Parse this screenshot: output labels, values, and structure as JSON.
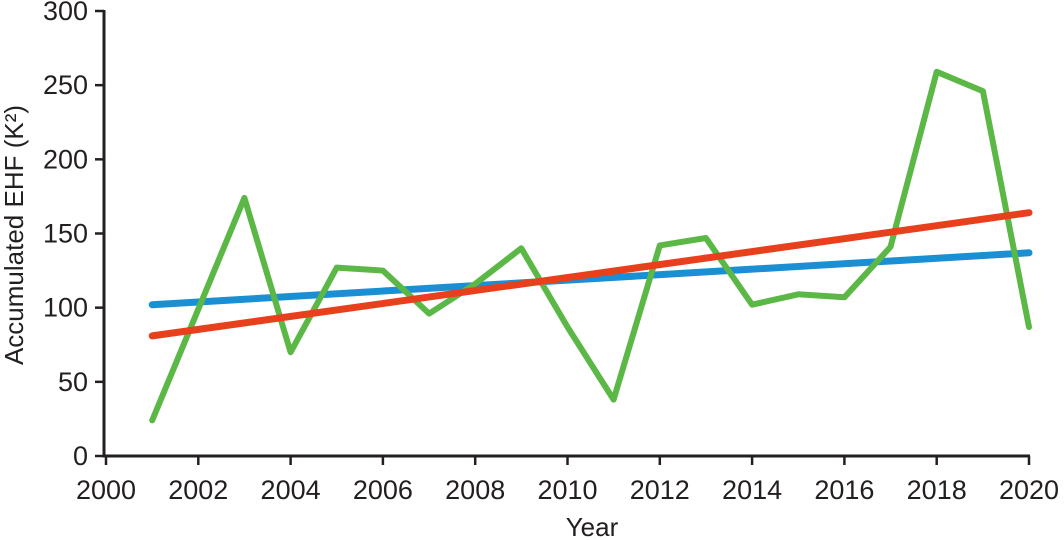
{
  "page": {
    "background_color": "#ffffff"
  },
  "chart_data": {
    "type": "line",
    "xlabel": "Year",
    "ylabel": "Accumulated EHF (K²)",
    "xlim": [
      2000,
      2020
    ],
    "ylim": [
      0,
      300
    ],
    "x_ticks": [
      2000,
      2002,
      2004,
      2006,
      2008,
      2010,
      2012,
      2014,
      2016,
      2018,
      2020
    ],
    "y_ticks": [
      0,
      50,
      100,
      150,
      200,
      250,
      300
    ],
    "grid": false,
    "legend_position": "none",
    "axis_color": "#231f20",
    "series": [
      {
        "name": "linear-trend-blue",
        "type": "trend-line",
        "color": "#1b8fd4",
        "stroke_width": 7,
        "x": [
          2001,
          2020
        ],
        "values": [
          102,
          137
        ]
      },
      {
        "name": "annual-accumulated-ehf",
        "type": "data-line",
        "color": "#5cb846",
        "stroke_width": 6,
        "x": [
          2001,
          2002,
          2003,
          2004,
          2005,
          2006,
          2007,
          2008,
          2009,
          2010,
          2011,
          2012,
          2013,
          2014,
          2015,
          2016,
          2017,
          2018,
          2019,
          2020
        ],
        "values": [
          24,
          99,
          174,
          70,
          127,
          125,
          96,
          116,
          140,
          87,
          38,
          142,
          147,
          102,
          109,
          107,
          141,
          259,
          246,
          87
        ]
      },
      {
        "name": "linear-trend-red",
        "type": "trend-line",
        "color": "#e8401d",
        "stroke_width": 7,
        "x": [
          2001,
          2020
        ],
        "values": [
          81,
          164
        ]
      }
    ]
  }
}
